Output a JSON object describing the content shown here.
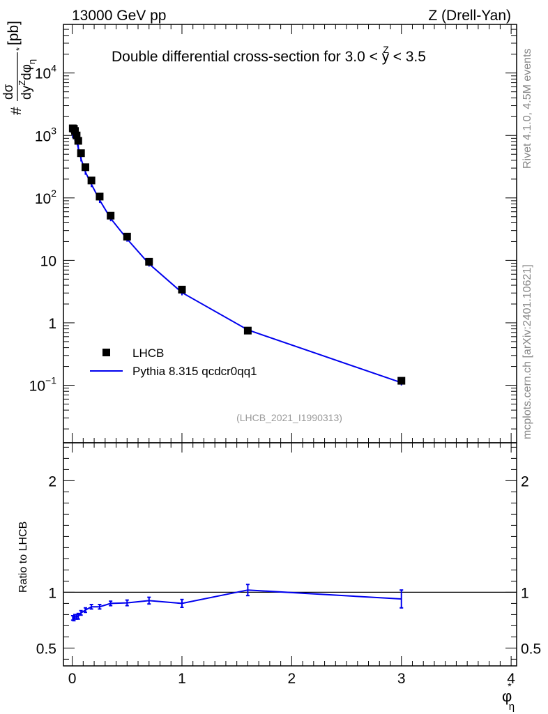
{
  "header": {
    "left": "13000 GeV pp",
    "right": "Z (Drell-Yan)"
  },
  "side_text": {
    "rivet": "Rivet 4.1.0,  4.5M events",
    "mcplots": "mcplots.cern.ch [arXiv:2401.10621]"
  },
  "colors": {
    "mc": "#0000ee",
    "data": "#000000",
    "watermark": "#999999"
  },
  "chart_data": [
    {
      "type": "scatter",
      "title": "Double differential cross-section for 3.0 < y^Z < 3.5",
      "title_parts": {
        "pre": "Double differential cross-section for 3.0 < ",
        "sup": "Z",
        "var": "y",
        "post": " < 3.5"
      },
      "analysis_id": "(LHCB_2021_I1990313)",
      "ylabel": "# dσ* / dy^Z dφ*_η [pb]",
      "ylabel_parts": {
        "num": "dσ",
        "den": "dy",
        "den_sup": "Z",
        "den2": "dφ",
        "den2_sub": "η",
        "star": "*",
        "unit": "[pb]",
        "hash": "#"
      },
      "yscale": "log",
      "ylim": [
        0.012,
        60000
      ],
      "xlim": [
        -0.08,
        4.05
      ],
      "yticks": [
        {
          "v": 10000,
          "base": "10",
          "exp": "4"
        },
        {
          "v": 1000,
          "base": "10",
          "exp": "3"
        },
        {
          "v": 100,
          "base": "10",
          "exp": "2"
        },
        {
          "v": 10,
          "base": "10",
          "exp": ""
        },
        {
          "v": 1,
          "base": "1",
          "exp": ""
        },
        {
          "v": 0.1,
          "base": "10",
          "exp": "−1"
        }
      ],
      "legend": {
        "placement": "bottom-left",
        "entries": [
          "LHCB",
          "Pythia 8.315 qcdcr0qq1"
        ]
      },
      "series": [
        {
          "name": "LHCB",
          "x": [
            0.005,
            0.015,
            0.025,
            0.04,
            0.055,
            0.08,
            0.12,
            0.175,
            0.25,
            0.35,
            0.5,
            0.7,
            1.0,
            1.6,
            3.0
          ],
          "y": [
            1300,
            1280,
            1180,
            1000,
            820,
            520,
            310,
            190,
            105,
            52,
            24,
            9.5,
            3.4,
            0.75,
            0.118
          ]
        },
        {
          "name": "Pythia 8.315 qcdcr0qq1",
          "x": [
            0.005,
            0.015,
            0.025,
            0.04,
            0.055,
            0.08,
            0.12,
            0.175,
            0.25,
            0.35,
            0.5,
            0.7,
            1.0,
            1.6,
            3.0
          ],
          "y": [
            1000,
            980,
            910,
            790,
            640,
            425,
            260,
            165,
            92,
            47,
            22,
            8.8,
            3.05,
            0.77,
            0.11
          ]
        }
      ]
    },
    {
      "type": "line",
      "ylabel": "Ratio to LHCB",
      "xlabel": "φ*_η",
      "xlabel_parts": {
        "main": "φ",
        "sup": "*",
        "sub": "η"
      },
      "xlim": [
        -0.08,
        4.05
      ],
      "ylim": [
        0.34,
        2.34
      ],
      "xticks": [
        "0",
        "1",
        "2",
        "3",
        "4"
      ],
      "yticks": [
        "0.5",
        "1",
        "2"
      ],
      "reference_line": 1.0,
      "series": [
        {
          "name": "Pythia 8.315 qcdcr0qq1",
          "x": [
            0.005,
            0.015,
            0.025,
            0.04,
            0.055,
            0.08,
            0.12,
            0.175,
            0.25,
            0.35,
            0.5,
            0.7,
            1.0,
            1.6,
            3.0
          ],
          "y": [
            0.77,
            0.765,
            0.78,
            0.78,
            0.785,
            0.815,
            0.84,
            0.87,
            0.87,
            0.9,
            0.905,
            0.925,
            0.9,
            1.02,
            0.94
          ],
          "err": [
            0.02,
            0.02,
            0.02,
            0.02,
            0.025,
            0.02,
            0.02,
            0.02,
            0.02,
            0.02,
            0.025,
            0.03,
            0.035,
            0.05,
            0.08
          ]
        }
      ]
    }
  ]
}
